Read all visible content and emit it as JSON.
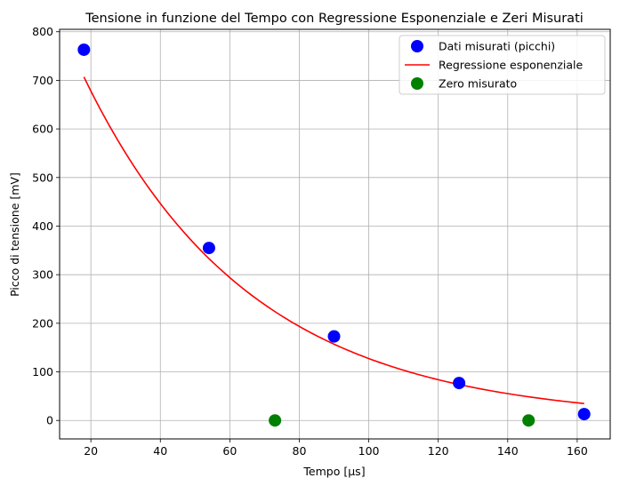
{
  "chart_data": {
    "type": "scatter",
    "title": "Tensione in funzione del Tempo con Regressione Esponenziale e Zeri Misurati",
    "xlabel": "Tempo [µs]",
    "ylabel": "Picco di tensione [mV]",
    "xlim": [
      11,
      169.5
    ],
    "ylim": [
      -38,
      805
    ],
    "xticks": [
      20,
      40,
      60,
      80,
      100,
      120,
      140,
      160
    ],
    "yticks": [
      0,
      100,
      200,
      300,
      400,
      500,
      600,
      700,
      800
    ],
    "grid": true,
    "legend_position": "top-right",
    "series": [
      {
        "name": "Dati misurati (picchi)",
        "kind": "scatter",
        "color": "#0000ff",
        "points": [
          [
            18,
            763
          ],
          [
            54,
            355
          ],
          [
            90,
            173
          ],
          [
            126,
            77
          ],
          [
            162,
            13
          ]
        ]
      },
      {
        "name": "Regressione esponenziale",
        "kind": "line",
        "color": "#ff0000",
        "model": {
          "a": 1030,
          "b": 0.0209,
          "x_start": 18,
          "x_end": 162
        }
      },
      {
        "name": "Zero misurato",
        "kind": "scatter",
        "color": "#008000",
        "points": [
          [
            73,
            0
          ],
          [
            146,
            0
          ]
        ]
      }
    ]
  }
}
